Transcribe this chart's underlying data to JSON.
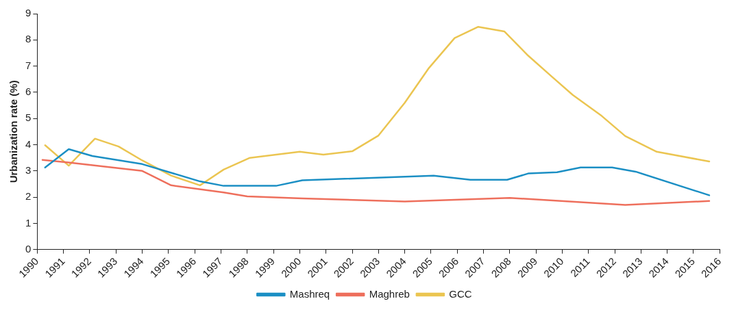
{
  "chart_data": {
    "type": "line",
    "ylabel": "Urbanization rate (%)",
    "xlim": [
      1990,
      2016
    ],
    "xticks": [
      1990,
      1991,
      1992,
      1993,
      1994,
      1995,
      1996,
      1997,
      1998,
      1999,
      2000,
      2001,
      2002,
      2003,
      2004,
      2005,
      2006,
      2007,
      2008,
      2009,
      2010,
      2011,
      2012,
      2013,
      2014,
      2015,
      2016
    ],
    "ylim": [
      0,
      9
    ],
    "yticks": [
      0,
      1,
      2,
      3,
      4,
      5,
      6,
      7,
      8,
      9
    ],
    "grid": false,
    "legend": "bottom",
    "marker": "none",
    "line_style": "solid",
    "series": [
      {
        "name": "Mashreq",
        "color": "#1b8fc4",
        "x": [
          1990.3,
          1991.2,
          1992.1,
          1994.0,
          1996.2,
          1997.1,
          1999.1,
          2000.1,
          2005.1,
          2006.5,
          2007.9,
          2008.7,
          2009.8,
          2010.7,
          2011.9,
          2012.8,
          2015.6
        ],
        "values": [
          3.13,
          3.83,
          3.57,
          3.26,
          2.6,
          2.43,
          2.43,
          2.64,
          2.82,
          2.66,
          2.66,
          2.9,
          2.95,
          3.13,
          3.13,
          2.97,
          2.07
        ]
      },
      {
        "name": "Maghreb",
        "color": "#ee6f5c",
        "x": [
          1990.2,
          1991.2,
          1994.0,
          1995.1,
          1997.1,
          1998.0,
          2000.1,
          2004.0,
          2008.0,
          2012.4,
          2015.6
        ],
        "values": [
          3.42,
          3.32,
          3.0,
          2.45,
          2.18,
          2.03,
          1.95,
          1.83,
          1.97,
          1.7,
          1.85
        ]
      },
      {
        "name": "GCC",
        "color": "#ebc551",
        "x": [
          1990.3,
          1991.2,
          1992.2,
          1993.1,
          1994.0,
          1995.1,
          1996.2,
          1997.1,
          1998.1,
          1999.1,
          2000.0,
          2000.9,
          2002.0,
          2003.0,
          2004.0,
          2004.9,
          2005.9,
          2006.8,
          2007.8,
          2008.7,
          2009.6,
          2010.4,
          2011.5,
          2012.4,
          2013.6,
          2015.6
        ],
        "values": [
          3.98,
          3.2,
          4.23,
          3.93,
          3.4,
          2.82,
          2.45,
          3.05,
          3.5,
          3.62,
          3.73,
          3.62,
          3.75,
          4.35,
          5.6,
          6.9,
          8.07,
          8.5,
          8.32,
          7.4,
          6.6,
          5.9,
          5.1,
          4.33,
          3.73,
          3.36
        ]
      }
    ]
  }
}
